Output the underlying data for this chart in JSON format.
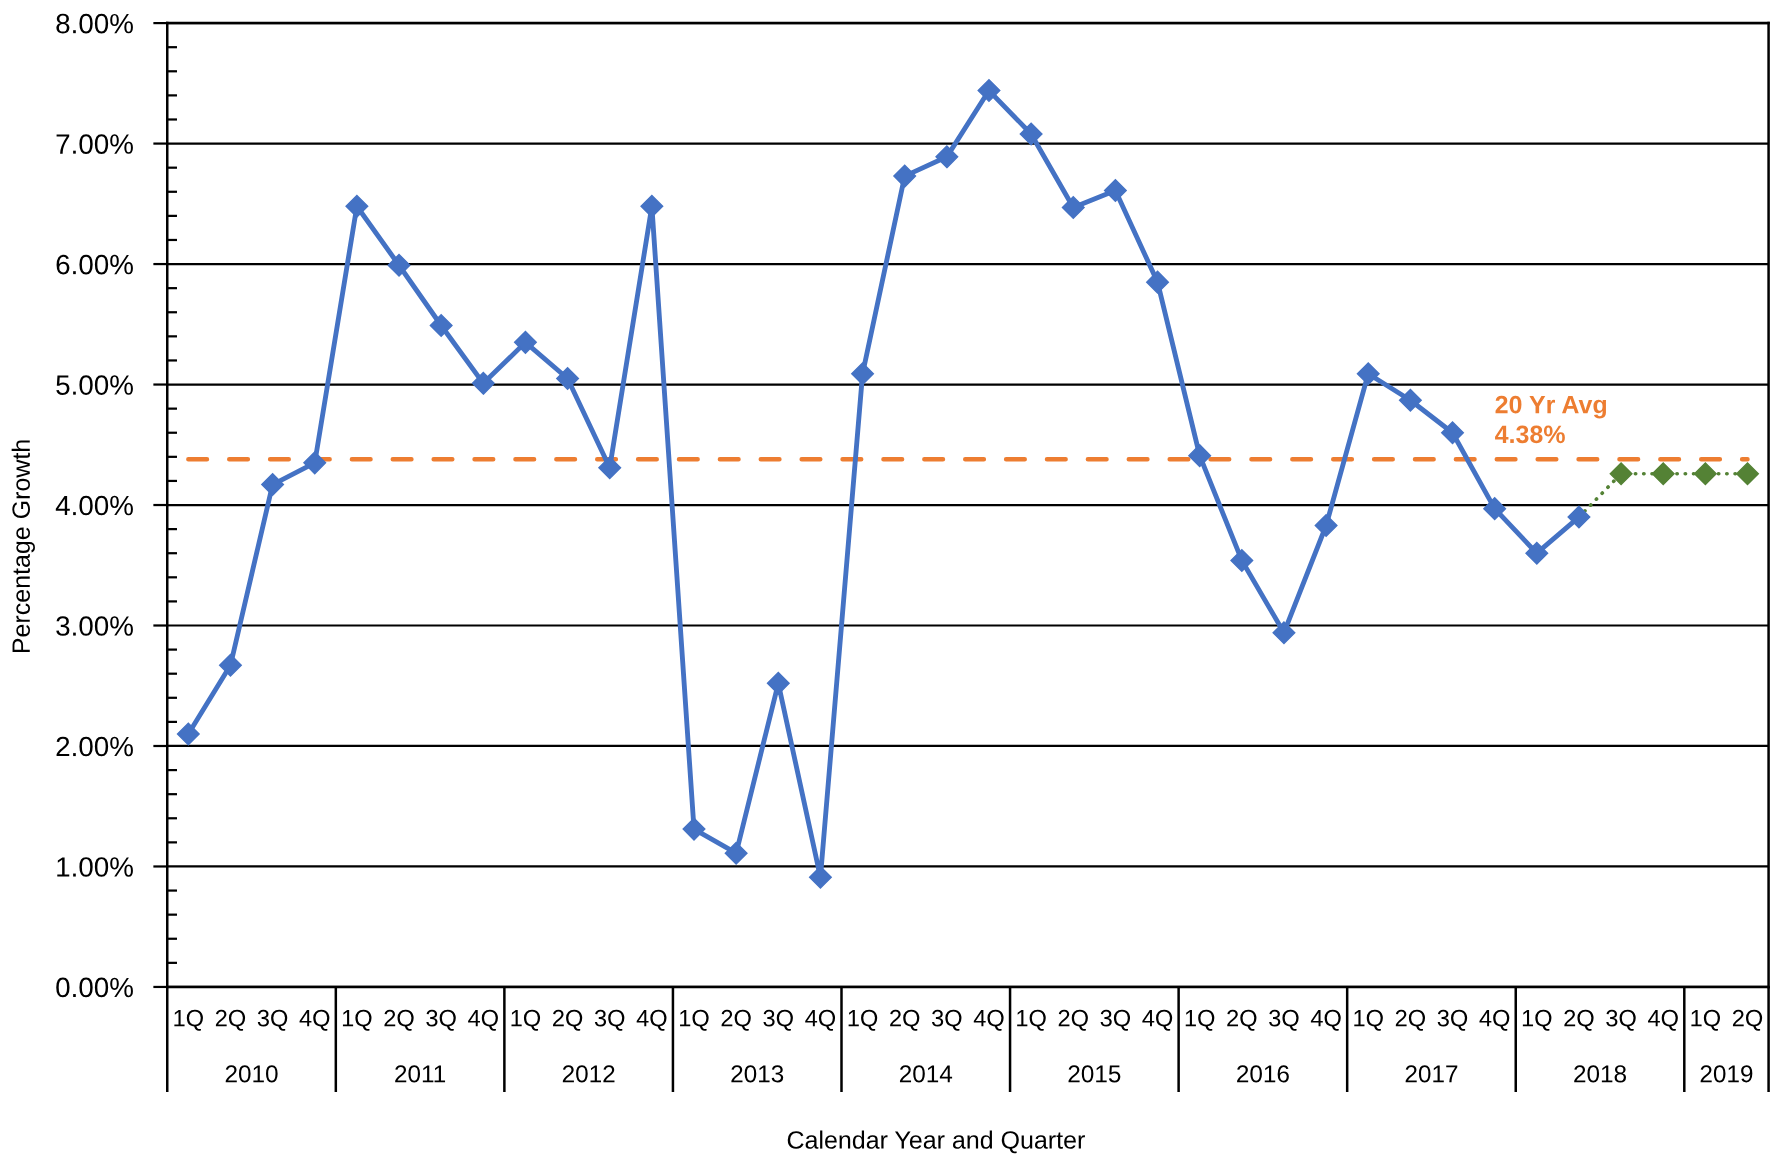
{
  "chart_data": {
    "type": "line",
    "xlabel": "Calendar Year and Quarter",
    "ylabel": "Percentage Growth",
    "categories": [
      "1Q",
      "2Q",
      "3Q",
      "4Q",
      "1Q",
      "2Q",
      "3Q",
      "4Q",
      "1Q",
      "2Q",
      "3Q",
      "4Q",
      "1Q",
      "2Q",
      "3Q",
      "4Q",
      "1Q",
      "2Q",
      "3Q",
      "4Q",
      "1Q",
      "2Q",
      "3Q",
      "4Q",
      "1Q",
      "2Q",
      "3Q",
      "4Q",
      "1Q",
      "2Q",
      "3Q",
      "4Q",
      "1Q",
      "2Q",
      "3Q",
      "4Q",
      "1Q",
      "2Q"
    ],
    "annotations": [
      "2010",
      "2011",
      "2012",
      "2013",
      "2014",
      "2015",
      "2016",
      "2017",
      "2018",
      "2019"
    ],
    "series": [
      {
        "color": "#4472c4",
        "values": [
          2.1,
          2.67,
          4.17,
          4.35,
          6.48,
          5.99,
          5.49,
          5.01,
          5.35,
          5.05,
          4.31,
          6.48,
          1.31,
          1.11,
          2.52,
          0.91,
          5.09,
          6.73,
          6.89,
          7.44,
          7.08,
          6.47,
          6.61,
          5.85,
          4.41,
          3.54,
          2.94,
          3.83,
          5.09,
          4.87,
          4.6,
          3.97,
          3.6,
          3.9,
          null,
          null,
          null,
          null
        ]
      },
      {
        "color": "#548235",
        "line_style": "dotted",
        "values": [
          null,
          null,
          null,
          null,
          null,
          null,
          null,
          null,
          null,
          null,
          null,
          null,
          null,
          null,
          null,
          null,
          null,
          null,
          null,
          null,
          null,
          null,
          null,
          null,
          null,
          null,
          null,
          null,
          null,
          null,
          null,
          null,
          null,
          3.9,
          4.26,
          4.26,
          4.26,
          4.26
        ]
      }
    ],
    "ylim": [
      0,
      8
    ],
    "yticks": [
      {
        "value": 0,
        "label": "0.00%"
      },
      {
        "value": 0.2,
        "label": null
      },
      {
        "value": 0.4,
        "label": null
      },
      {
        "value": 0.6,
        "label": null
      },
      {
        "value": 0.8,
        "label": null
      },
      {
        "value": 1,
        "label": "1.00%"
      },
      {
        "value": 1.2,
        "label": null
      },
      {
        "value": 1.4,
        "label": null
      },
      {
        "value": 1.6,
        "label": null
      },
      {
        "value": 1.8,
        "label": null
      },
      {
        "value": 2,
        "label": "2.00%"
      },
      {
        "value": 2.2,
        "label": null
      },
      {
        "value": 2.4,
        "label": null
      },
      {
        "value": 2.6,
        "label": null
      },
      {
        "value": 2.8,
        "label": null
      },
      {
        "value": 3,
        "label": "3.00%"
      },
      {
        "value": 3.2,
        "label": null
      },
      {
        "value": 3.4,
        "label": null
      },
      {
        "value": 3.6,
        "label": null
      },
      {
        "value": 3.8,
        "label": null
      },
      {
        "value": 4,
        "label": "4.00%"
      },
      {
        "value": 4.2,
        "label": null
      },
      {
        "value": 4.4,
        "label": null
      },
      {
        "value": 4.6,
        "label": null
      },
      {
        "value": 4.8,
        "label": null
      },
      {
        "value": 5,
        "label": "5.00%"
      },
      {
        "value": 5.2,
        "label": null
      },
      {
        "value": 5.4,
        "label": null
      },
      {
        "value": 5.6,
        "label": null
      },
      {
        "value": 5.8,
        "label": null
      },
      {
        "value": 6,
        "label": "6.00%"
      },
      {
        "value": 6.2,
        "label": null
      },
      {
        "value": 6.4,
        "label": null
      },
      {
        "value": 6.6,
        "label": null
      },
      {
        "value": 6.8,
        "label": null
      },
      {
        "value": 7,
        "label": "7.00%"
      },
      {
        "value": 7.2,
        "label": null
      },
      {
        "value": 7.4,
        "label": null
      },
      {
        "value": 7.6,
        "label": null
      },
      {
        "value": 7.8,
        "label": null
      },
      {
        "value": 8,
        "label": "8.00%"
      }
    ],
    "ref_lines": [
      {
        "axis": "y",
        "value": 4.38,
        "label": "20 Yr Avg\n4.38%",
        "color": "#ed7d31",
        "line_style": "dashed"
      }
    ],
    "grid": "y",
    "marker": "diamond",
    "line_style": "solid"
  }
}
